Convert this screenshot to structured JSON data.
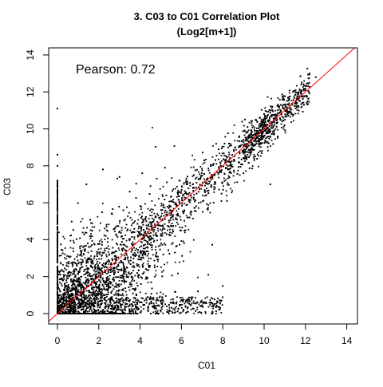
{
  "chart_data": {
    "type": "scatter",
    "title": [
      "3. C03 to C01 Correlation Plot",
      "(Log2[m+1])"
    ],
    "xlabel": "C01",
    "ylabel": "C03",
    "xlim": [
      0,
      14.5
    ],
    "ylim": [
      0,
      14.5
    ],
    "x_ticks": [
      0,
      2,
      4,
      6,
      8,
      10,
      12,
      14
    ],
    "y_ticks": [
      0,
      2,
      4,
      6,
      8,
      10,
      12,
      14
    ],
    "grid": false,
    "annotation": "Pearson: 0.72",
    "point_color": "#000000",
    "reference_line": {
      "slope": 1,
      "intercept": 0,
      "color": "#ff0000"
    },
    "points": [
      {
        "x": 0.0,
        "y": 11.1
      },
      {
        "x": 0.0,
        "y": 8.6
      },
      {
        "x": 0.0,
        "y": 8.0
      },
      {
        "x": 0.0,
        "y": 7.2
      },
      {
        "x": 0.0,
        "y": 6.6
      },
      {
        "x": 0.0,
        "y": 6.0
      },
      {
        "x": 0.0,
        "y": 5.3
      },
      {
        "x": 0.0,
        "y": 4.6
      },
      {
        "x": 0.0,
        "y": 3.9
      },
      {
        "x": 0.0,
        "y": 3.1
      },
      {
        "x": 0.0,
        "y": 2.4
      },
      {
        "x": 0.0,
        "y": 1.6
      },
      {
        "x": 0.0,
        "y": 0.9
      },
      {
        "x": 0.0,
        "y": 0.3
      },
      {
        "x": 2.2,
        "y": 7.8
      },
      {
        "x": 3.0,
        "y": 7.4
      },
      {
        "x": 4.1,
        "y": 7.6
      },
      {
        "x": 5.2,
        "y": 7.9
      },
      {
        "x": 5.9,
        "y": 7.2
      },
      {
        "x": 6.6,
        "y": 7.5
      },
      {
        "x": 7.1,
        "y": 8.3
      },
      {
        "x": 7.8,
        "y": 8.9
      },
      {
        "x": 8.3,
        "y": 9.2
      },
      {
        "x": 8.8,
        "y": 9.6
      },
      {
        "x": 9.2,
        "y": 10.1
      },
      {
        "x": 9.6,
        "y": 10.5
      },
      {
        "x": 10.0,
        "y": 10.8
      },
      {
        "x": 10.4,
        "y": 11.2
      },
      {
        "x": 10.9,
        "y": 11.6
      },
      {
        "x": 11.4,
        "y": 12.0
      },
      {
        "x": 11.8,
        "y": 12.4
      },
      {
        "x": 12.2,
        "y": 13.0
      },
      {
        "x": 12.5,
        "y": 12.8
      },
      {
        "x": 9.9,
        "y": 8.8
      },
      {
        "x": 9.0,
        "y": 7.6
      },
      {
        "x": 10.3,
        "y": 7.0
      },
      {
        "x": 8.2,
        "y": 6.1
      },
      {
        "x": 8.0,
        "y": 1.5
      },
      {
        "x": 7.3,
        "y": 2.1
      },
      {
        "x": 6.8,
        "y": 1.2
      },
      {
        "x": 6.2,
        "y": 0.4
      },
      {
        "x": 7.5,
        "y": 0.0
      },
      {
        "x": 3.5,
        "y": 6.6
      },
      {
        "x": 4.5,
        "y": 6.9
      },
      {
        "x": 1.4,
        "y": 7.0
      },
      {
        "x": 10.2,
        "y": 9.9
      },
      {
        "x": 11.0,
        "y": 11.0
      },
      {
        "x": 12.0,
        "y": 12.1
      }
    ]
  }
}
